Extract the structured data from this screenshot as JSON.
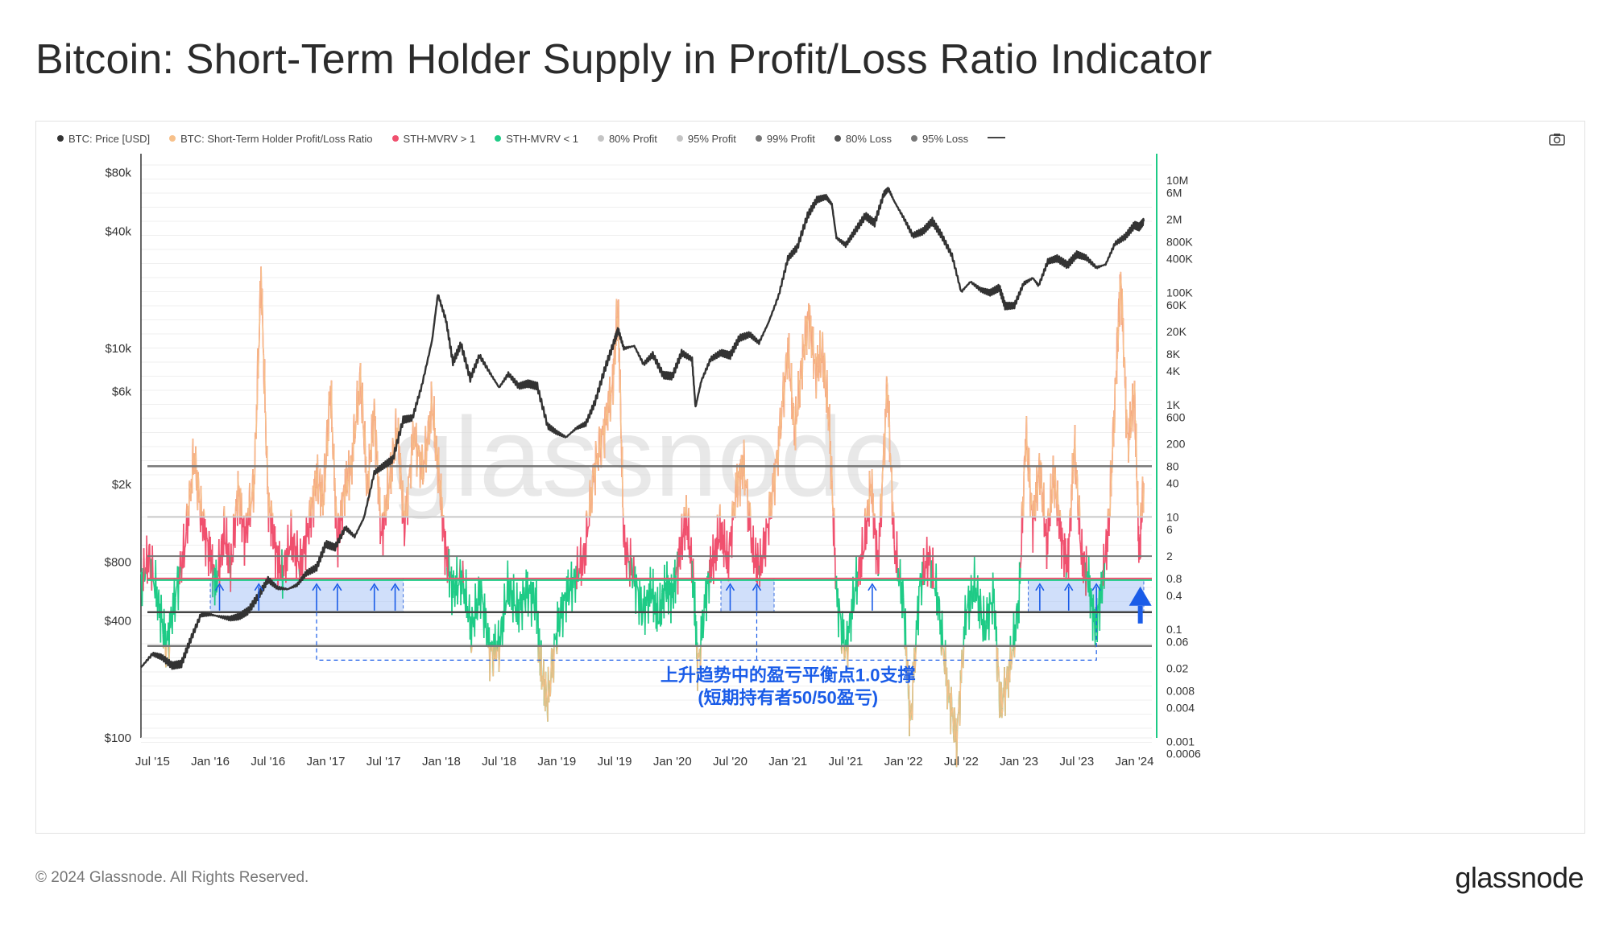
{
  "title": "Bitcoin: Short-Term Holder Supply in Profit/Loss Ratio Indicator",
  "footer": {
    "copyright": "© 2024 Glassnode. All Rights Reserved.",
    "logo": "glassnode"
  },
  "watermark": "glassnode",
  "toolbar": {
    "camera_icon": "camera-icon"
  },
  "legend": [
    {
      "label": "BTC: Price [USD]",
      "color": "#333333"
    },
    {
      "label": "BTC: Short-Term Holder Profit/Loss Ratio",
      "color": "#f7c08a"
    },
    {
      "label": "STH-MVRV > 1",
      "color": "#f0506e"
    },
    {
      "label": "STH-MVRV < 1",
      "color": "#1ecb86"
    },
    {
      "label": "80% Profit",
      "color": "#c4c4c4"
    },
    {
      "label": "95% Profit",
      "color": "#c4c4c4"
    },
    {
      "label": "99% Profit",
      "color": "#777777"
    },
    {
      "label": "80% Loss",
      "color": "#555555"
    },
    {
      "label": "95% Loss",
      "color": "#777777"
    }
  ],
  "annotation": {
    "line1": "上升趋势中的盈亏平衡点1.0支撑",
    "line2": "(短期持有者50/50盈亏)",
    "color": "#1a5ce8",
    "up_arrow_dates": [
      2016.08,
      2016.42,
      2016.92,
      2017.1,
      2017.42,
      2017.6,
      2020.5,
      2020.73,
      2021.73,
      2023.18,
      2023.43,
      2023.67
    ],
    "shaded_ranges": [
      [
        2016.0,
        2017.67
      ],
      [
        2020.42,
        2020.88
      ],
      [
        2023.08,
        2024.08
      ]
    ],
    "big_arrow_date": 2024.05
  },
  "chart_data": {
    "type": "line",
    "title": "",
    "x_ticks": [
      "Jul '15",
      "Jan '16",
      "Jul '16",
      "Jan '17",
      "Jul '17",
      "Jan '18",
      "Jul '18",
      "Jan '19",
      "Jul '19",
      "Jan '20",
      "Jul '20",
      "Jan '21",
      "Jul '21",
      "Jan '22",
      "Jul '22",
      "Jan '23",
      "Jul '23",
      "Jan '24"
    ],
    "x_tick_dates": [
      2015.5,
      2016.0,
      2016.5,
      2017.0,
      2017.5,
      2018.0,
      2018.5,
      2019.0,
      2019.5,
      2020.0,
      2020.5,
      2021.0,
      2021.5,
      2022.0,
      2022.5,
      2023.0,
      2023.5,
      2024.0
    ],
    "x_range": [
      2015.4,
      2024.15
    ],
    "left_axis": {
      "scale": "log",
      "range": [
        100,
        100000
      ],
      "ticks": [
        {
          "v": 100,
          "label": "$100"
        },
        {
          "v": 400,
          "label": "$400"
        },
        {
          "v": 800,
          "label": "$800"
        },
        {
          "v": 2000,
          "label": "$2k"
        },
        {
          "v": 6000,
          "label": "$6k"
        },
        {
          "v": 10000,
          "label": "$10k"
        },
        {
          "v": 40000,
          "label": "$40k"
        },
        {
          "v": 80000,
          "label": "$80k"
        }
      ]
    },
    "right_axis": {
      "scale": "log",
      "range": [
        0.0004,
        20000000
      ],
      "ticks": [
        "10M",
        "6M",
        "2M",
        "800K",
        "400K",
        "100K",
        "60K",
        "20K",
        "8K",
        "4K",
        "1K",
        "600",
        "200",
        "80",
        "40",
        "10",
        "6",
        "2",
        "0.8",
        "0.4",
        "0.1",
        "0.06",
        "0.02",
        "0.008",
        "0.004",
        "0.001",
        "0.0006"
      ],
      "tick_values": [
        10000000,
        6000000,
        2000000,
        800000,
        400000,
        100000,
        60000,
        20000,
        8000,
        4000,
        1000,
        600,
        200,
        80,
        40,
        10,
        6,
        2,
        0.8,
        0.4,
        0.1,
        0.06,
        0.02,
        0.008,
        0.004,
        0.001,
        0.0006
      ]
    },
    "bands": [
      {
        "name": "99% Profit",
        "value": 80
      },
      {
        "name": "95% Profit",
        "value": 10
      },
      {
        "name": "80% Profit",
        "value": 2
      },
      {
        "name": "breakeven",
        "value": 0.8
      },
      {
        "name": "80% Loss",
        "value": 0.2
      },
      {
        "name": "95% Loss",
        "value": 0.05
      }
    ],
    "series": [
      {
        "name": "BTC: Price [USD]",
        "axis": "left",
        "color": "#333333",
        "points": [
          [
            2015.4,
            230
          ],
          [
            2015.5,
            270
          ],
          [
            2015.58,
            260
          ],
          [
            2015.67,
            235
          ],
          [
            2015.75,
            240
          ],
          [
            2015.83,
            320
          ],
          [
            2015.92,
            430
          ],
          [
            2016.0,
            430
          ],
          [
            2016.08,
            420
          ],
          [
            2016.17,
            410
          ],
          [
            2016.25,
            420
          ],
          [
            2016.33,
            450
          ],
          [
            2016.42,
            540
          ],
          [
            2016.5,
            650
          ],
          [
            2016.58,
            590
          ],
          [
            2016.67,
            580
          ],
          [
            2016.75,
            610
          ],
          [
            2016.83,
            700
          ],
          [
            2016.92,
            750
          ],
          [
            2017.0,
            990
          ],
          [
            2017.08,
            950
          ],
          [
            2017.17,
            1200
          ],
          [
            2017.25,
            1080
          ],
          [
            2017.33,
            1350
          ],
          [
            2017.42,
            2300
          ],
          [
            2017.5,
            2500
          ],
          [
            2017.58,
            2700
          ],
          [
            2017.67,
            4300
          ],
          [
            2017.75,
            4400
          ],
          [
            2017.83,
            6400
          ],
          [
            2017.92,
            11000
          ],
          [
            2017.97,
            19000
          ],
          [
            2018.04,
            14000
          ],
          [
            2018.1,
            8500
          ],
          [
            2018.17,
            10500
          ],
          [
            2018.25,
            7000
          ],
          [
            2018.33,
            9200
          ],
          [
            2018.42,
            7500
          ],
          [
            2018.5,
            6300
          ],
          [
            2018.58,
            7400
          ],
          [
            2018.67,
            6400
          ],
          [
            2018.75,
            6600
          ],
          [
            2018.83,
            6400
          ],
          [
            2018.92,
            4000
          ],
          [
            2019.0,
            3700
          ],
          [
            2019.08,
            3500
          ],
          [
            2019.17,
            3900
          ],
          [
            2019.25,
            4100
          ],
          [
            2019.33,
            5300
          ],
          [
            2019.42,
            8000
          ],
          [
            2019.5,
            11000
          ],
          [
            2019.53,
            12500
          ],
          [
            2019.58,
            10000
          ],
          [
            2019.67,
            10300
          ],
          [
            2019.75,
            8300
          ],
          [
            2019.83,
            9300
          ],
          [
            2019.92,
            7300
          ],
          [
            2020.0,
            7200
          ],
          [
            2020.08,
            9500
          ],
          [
            2020.17,
            8800
          ],
          [
            2020.2,
            5000
          ],
          [
            2020.25,
            6800
          ],
          [
            2020.33,
            8800
          ],
          [
            2020.42,
            9500
          ],
          [
            2020.5,
            9200
          ],
          [
            2020.58,
            11300
          ],
          [
            2020.67,
            11800
          ],
          [
            2020.75,
            10700
          ],
          [
            2020.83,
            13500
          ],
          [
            2020.92,
            18700
          ],
          [
            2021.0,
            29000
          ],
          [
            2021.08,
            33000
          ],
          [
            2021.17,
            48000
          ],
          [
            2021.25,
            58000
          ],
          [
            2021.33,
            60000
          ],
          [
            2021.38,
            55000
          ],
          [
            2021.42,
            37000
          ],
          [
            2021.5,
            34000
          ],
          [
            2021.58,
            40000
          ],
          [
            2021.67,
            48000
          ],
          [
            2021.75,
            44000
          ],
          [
            2021.83,
            62000
          ],
          [
            2021.87,
            66000
          ],
          [
            2021.92,
            57000
          ],
          [
            2022.0,
            47000
          ],
          [
            2022.08,
            38000
          ],
          [
            2022.17,
            40000
          ],
          [
            2022.25,
            45000
          ],
          [
            2022.33,
            38000
          ],
          [
            2022.42,
            30000
          ],
          [
            2022.5,
            19500
          ],
          [
            2022.58,
            22000
          ],
          [
            2022.67,
            20000
          ],
          [
            2022.75,
            19300
          ],
          [
            2022.83,
            20500
          ],
          [
            2022.88,
            16500
          ],
          [
            2022.96,
            16600
          ],
          [
            2023.04,
            21500
          ],
          [
            2023.12,
            23000
          ],
          [
            2023.17,
            21000
          ],
          [
            2023.25,
            28000
          ],
          [
            2023.33,
            29000
          ],
          [
            2023.42,
            26800
          ],
          [
            2023.5,
            30400
          ],
          [
            2023.58,
            29300
          ],
          [
            2023.67,
            26000
          ],
          [
            2023.75,
            27000
          ],
          [
            2023.83,
            34500
          ],
          [
            2023.92,
            37500
          ],
          [
            2024.0,
            43000
          ],
          [
            2024.04,
            42000
          ],
          [
            2024.08,
            45000
          ]
        ]
      },
      {
        "name": "BTC: Short-Term Holder Profit/Loss Ratio",
        "axis": "right",
        "color": "#f7c08a",
        "points": [
          [
            2015.4,
            0.6
          ],
          [
            2015.47,
            2
          ],
          [
            2015.55,
            0.3
          ],
          [
            2015.62,
            0.05
          ],
          [
            2015.7,
            0.4
          ],
          [
            2015.78,
            3
          ],
          [
            2015.86,
            120
          ],
          [
            2015.93,
            8
          ],
          [
            2016.0,
            2
          ],
          [
            2016.05,
            0.6
          ],
          [
            2016.12,
            5
          ],
          [
            2016.18,
            1.2
          ],
          [
            2016.24,
            30
          ],
          [
            2016.3,
            4
          ],
          [
            2016.38,
            40
          ],
          [
            2016.44,
            200000
          ],
          [
            2016.5,
            20
          ],
          [
            2016.56,
            3
          ],
          [
            2016.62,
            0.9
          ],
          [
            2016.7,
            4
          ],
          [
            2016.78,
            1.3
          ],
          [
            2016.86,
            8
          ],
          [
            2016.92,
            50
          ],
          [
            2016.98,
            20
          ],
          [
            2017.04,
            2000
          ],
          [
            2017.1,
            3
          ],
          [
            2017.16,
            30
          ],
          [
            2017.22,
            80
          ],
          [
            2017.3,
            3000
          ],
          [
            2017.36,
            30
          ],
          [
            2017.42,
            800
          ],
          [
            2017.48,
            4
          ],
          [
            2017.55,
            40
          ],
          [
            2017.62,
            400
          ],
          [
            2017.68,
            6
          ],
          [
            2017.76,
            300
          ],
          [
            2017.84,
            60
          ],
          [
            2017.92,
            1000
          ],
          [
            2017.98,
            50
          ],
          [
            2018.04,
            2
          ],
          [
            2018.1,
            0.5
          ],
          [
            2018.18,
            0.8
          ],
          [
            2018.26,
            0.1
          ],
          [
            2018.34,
            0.5
          ],
          [
            2018.42,
            0.04
          ],
          [
            2018.5,
            0.05
          ],
          [
            2018.58,
            0.6
          ],
          [
            2018.66,
            0.2
          ],
          [
            2018.74,
            0.5
          ],
          [
            2018.82,
            0.3
          ],
          [
            2018.86,
            0.02
          ],
          [
            2018.92,
            0.005
          ],
          [
            2019.0,
            0.1
          ],
          [
            2019.08,
            0.4
          ],
          [
            2019.16,
            0.8
          ],
          [
            2019.24,
            2
          ],
          [
            2019.32,
            60
          ],
          [
            2019.4,
            300
          ],
          [
            2019.48,
            2000
          ],
          [
            2019.53,
            60000
          ],
          [
            2019.58,
            3
          ],
          [
            2019.66,
            1
          ],
          [
            2019.74,
            0.2
          ],
          [
            2019.82,
            0.5
          ],
          [
            2019.88,
            0.15
          ],
          [
            2019.94,
            0.6
          ],
          [
            2020.0,
            0.4
          ],
          [
            2020.06,
            2
          ],
          [
            2020.12,
            10
          ],
          [
            2020.18,
            0.8
          ],
          [
            2020.22,
            0.02
          ],
          [
            2020.3,
            0.6
          ],
          [
            2020.36,
            2
          ],
          [
            2020.42,
            6
          ],
          [
            2020.48,
            1.5
          ],
          [
            2020.56,
            40
          ],
          [
            2020.62,
            80
          ],
          [
            2020.7,
            2
          ],
          [
            2020.76,
            1.2
          ],
          [
            2020.84,
            10
          ],
          [
            2020.92,
            200
          ],
          [
            2021.0,
            10000
          ],
          [
            2021.06,
            300
          ],
          [
            2021.12,
            5000
          ],
          [
            2021.18,
            40000
          ],
          [
            2021.24,
            4000
          ],
          [
            2021.3,
            8000
          ],
          [
            2021.36,
            400
          ],
          [
            2021.42,
            0.4
          ],
          [
            2021.5,
            0.04
          ],
          [
            2021.58,
            0.5
          ],
          [
            2021.66,
            3
          ],
          [
            2021.72,
            40
          ],
          [
            2021.78,
            1.2
          ],
          [
            2021.86,
            2500
          ],
          [
            2021.92,
            3
          ],
          [
            2022.0,
            0.3
          ],
          [
            2022.06,
            0.002
          ],
          [
            2022.14,
            0.6
          ],
          [
            2022.22,
            2
          ],
          [
            2022.3,
            0.3
          ],
          [
            2022.38,
            0.01
          ],
          [
            2022.46,
            0.001
          ],
          [
            2022.54,
            0.2
          ],
          [
            2022.62,
            0.6
          ],
          [
            2022.7,
            0.1
          ],
          [
            2022.78,
            0.4
          ],
          [
            2022.84,
            0.004
          ],
          [
            2022.92,
            0.02
          ],
          [
            2023.0,
            0.3
          ],
          [
            2023.06,
            300
          ],
          [
            2023.12,
            8
          ],
          [
            2023.18,
            80
          ],
          [
            2023.24,
            3
          ],
          [
            2023.3,
            60
          ],
          [
            2023.36,
            5
          ],
          [
            2023.42,
            1.2
          ],
          [
            2023.48,
            200
          ],
          [
            2023.54,
            2
          ],
          [
            2023.6,
            0.8
          ],
          [
            2023.66,
            0.1
          ],
          [
            2023.72,
            0.6
          ],
          [
            2023.78,
            8
          ],
          [
            2023.84,
            3000
          ],
          [
            2023.88,
            200000
          ],
          [
            2023.94,
            200
          ],
          [
            2024.0,
            1500
          ],
          [
            2024.04,
            2
          ],
          [
            2024.08,
            40
          ]
        ]
      }
    ]
  }
}
